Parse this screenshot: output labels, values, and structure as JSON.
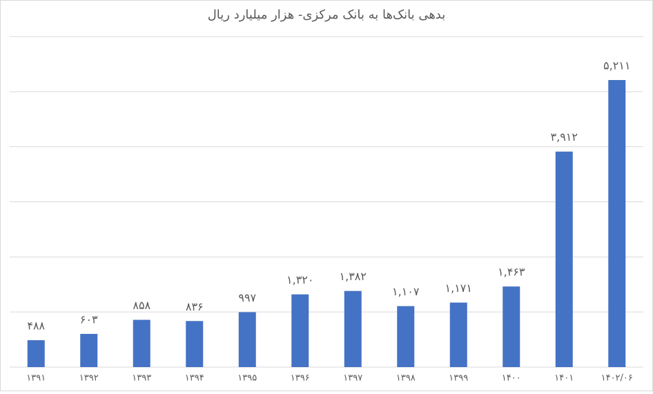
{
  "chart_data": {
    "type": "bar",
    "title": "بدهی بانک‌ها به بانک مرکزی- هزار میلیارد ریال",
    "categories": [
      "۱۳۹۱",
      "۱۳۹۲",
      "۱۳۹۳",
      "۱۳۹۴",
      "۱۳۹۵",
      "۱۳۹۶",
      "۱۳۹۷",
      "۱۳۹۸",
      "۱۳۹۹",
      "۱۴۰۰",
      "۱۴۰۱",
      "۱۴۰۲/۰۶"
    ],
    "values": [
      488,
      603,
      858,
      836,
      997,
      1320,
      1382,
      1107,
      1171,
      1463,
      3912,
      5211
    ],
    "value_labels": [
      "۴۸۸",
      "۶۰۳",
      "۸۵۸",
      "۸۳۶",
      "۹۹۷",
      "۱,۳۲۰",
      "۱,۳۸۲",
      "۱,۱۰۷",
      "۱,۱۷۱",
      "۱,۴۶۳",
      "۳,۹۱۲",
      "۵,۲۱۱"
    ],
    "color": "#4472c4",
    "ylim": [
      0,
      6000
    ],
    "yticks": [
      0,
      1000,
      2000,
      3000,
      4000,
      5000,
      6000
    ],
    "grid": true
  }
}
